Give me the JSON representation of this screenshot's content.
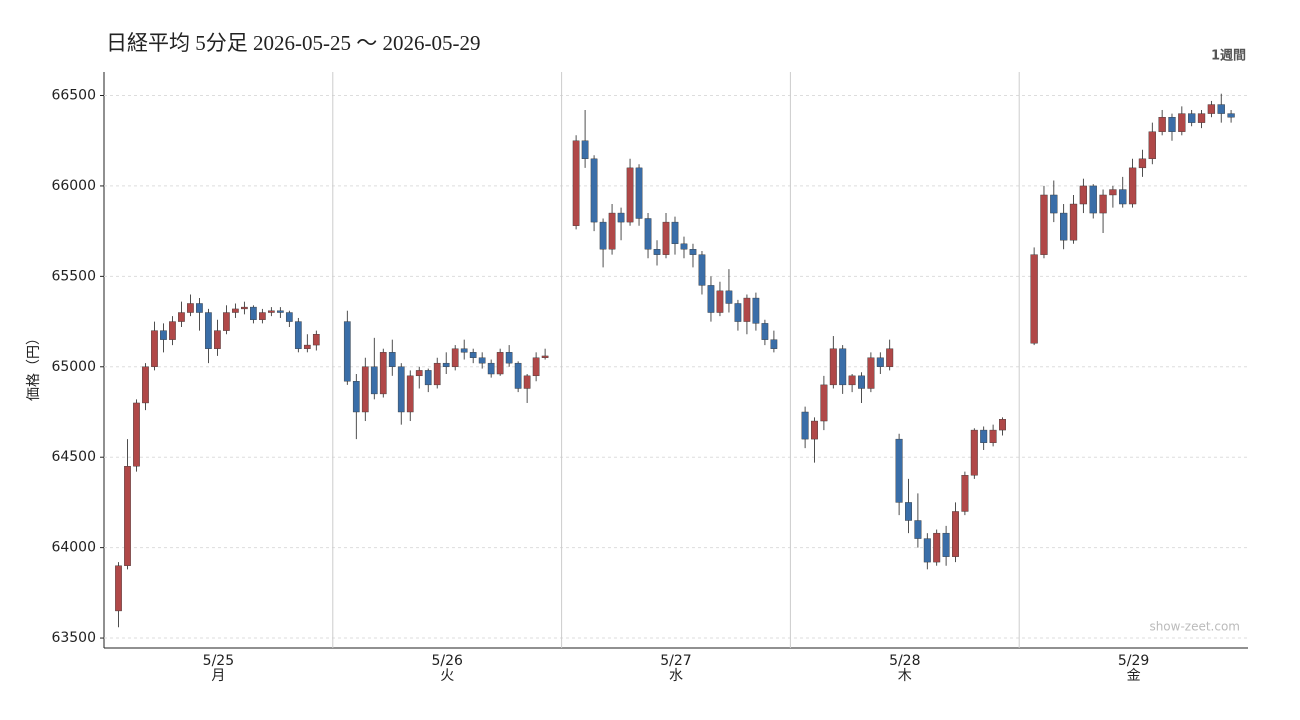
{
  "chart_data": {
    "type": "candlestick",
    "title": "日経平均 5分足  2026-05-25 〜 2026-05-29",
    "period": "1週間",
    "y_label": "価格（円）",
    "watermark": "show-zeet.com",
    "up_color": "#b04848",
    "down_color": "#3a6ea8",
    "ylim": [
      63445,
      66630
    ],
    "yticks": [
      63500,
      64000,
      64500,
      65000,
      65500,
      66000,
      66500
    ],
    "grid": true,
    "days": [
      {
        "date": "5/25",
        "weekday": "月",
        "candles": [
          [
            63650,
            63920,
            63560,
            63900
          ],
          [
            63900,
            64600,
            63880,
            64450
          ],
          [
            64450,
            64820,
            64420,
            64800
          ],
          [
            64800,
            65020,
            64760,
            65000
          ],
          [
            65000,
            65250,
            64980,
            65200
          ],
          [
            65200,
            65240,
            65080,
            65150
          ],
          [
            65150,
            65280,
            65120,
            65250
          ],
          [
            65250,
            65360,
            65220,
            65300
          ],
          [
            65300,
            65400,
            65280,
            65350
          ],
          [
            65350,
            65380,
            65200,
            65300
          ],
          [
            65300,
            65320,
            65020,
            65100
          ],
          [
            65100,
            65260,
            65060,
            65200
          ],
          [
            65200,
            65340,
            65180,
            65300
          ],
          [
            65300,
            65350,
            65270,
            65320
          ],
          [
            65320,
            65360,
            65290,
            65330
          ],
          [
            65330,
            65340,
            65240,
            65260
          ],
          [
            65260,
            65320,
            65240,
            65300
          ],
          [
            65300,
            65330,
            65280,
            65310
          ],
          [
            65310,
            65330,
            65270,
            65300
          ],
          [
            65300,
            65310,
            65220,
            65250
          ],
          [
            65250,
            65270,
            65080,
            65100
          ],
          [
            65100,
            65180,
            65080,
            65120
          ],
          [
            65120,
            65200,
            65090,
            65180
          ]
        ]
      },
      {
        "date": "5/26",
        "weekday": "火",
        "candles": [
          [
            65250,
            65310,
            64900,
            64920
          ],
          [
            64920,
            64960,
            64600,
            64750
          ],
          [
            64750,
            65050,
            64700,
            65000
          ],
          [
            65000,
            65160,
            64820,
            64850
          ],
          [
            64850,
            65100,
            64830,
            65080
          ],
          [
            65080,
            65150,
            64950,
            65000
          ],
          [
            65000,
            65020,
            64680,
            64750
          ],
          [
            64750,
            64980,
            64700,
            64950
          ],
          [
            64950,
            65000,
            64880,
            64980
          ],
          [
            64980,
            64990,
            64860,
            64900
          ],
          [
            64900,
            65050,
            64880,
            65020
          ],
          [
            65020,
            65080,
            64960,
            65000
          ],
          [
            65000,
            65120,
            64980,
            65100
          ],
          [
            65100,
            65150,
            65040,
            65080
          ],
          [
            65080,
            65100,
            65020,
            65050
          ],
          [
            65050,
            65080,
            64990,
            65020
          ],
          [
            65020,
            65040,
            64940,
            64960
          ],
          [
            64960,
            65100,
            64950,
            65080
          ],
          [
            65080,
            65120,
            65000,
            65020
          ],
          [
            65020,
            65030,
            64860,
            64880
          ],
          [
            64880,
            64960,
            64800,
            64950
          ],
          [
            64950,
            65080,
            64920,
            65050
          ],
          [
            65050,
            65100,
            65040,
            65060
          ]
        ]
      },
      {
        "date": "5/27",
        "weekday": "水",
        "candles": [
          [
            65780,
            66280,
            65760,
            66250
          ],
          [
            66250,
            66420,
            66100,
            66150
          ],
          [
            66150,
            66170,
            65750,
            65800
          ],
          [
            65800,
            65820,
            65550,
            65650
          ],
          [
            65650,
            65900,
            65620,
            65850
          ],
          [
            65850,
            65880,
            65700,
            65800
          ],
          [
            65800,
            66150,
            65780,
            66100
          ],
          [
            66100,
            66120,
            65780,
            65820
          ],
          [
            65820,
            65850,
            65600,
            65650
          ],
          [
            65650,
            65700,
            65560,
            65620
          ],
          [
            65620,
            65850,
            65600,
            65800
          ],
          [
            65800,
            65830,
            65620,
            65680
          ],
          [
            65680,
            65720,
            65600,
            65650
          ],
          [
            65650,
            65680,
            65550,
            65620
          ],
          [
            65620,
            65640,
            65400,
            65450
          ],
          [
            65450,
            65500,
            65250,
            65300
          ],
          [
            65300,
            65470,
            65280,
            65420
          ],
          [
            65420,
            65540,
            65300,
            65350
          ],
          [
            65350,
            65370,
            65200,
            65250
          ],
          [
            65250,
            65400,
            65180,
            65380
          ],
          [
            65380,
            65410,
            65200,
            65240
          ],
          [
            65240,
            65260,
            65120,
            65150
          ],
          [
            65150,
            65200,
            65080,
            65100
          ]
        ]
      },
      {
        "date": "5/28",
        "weekday": "木",
        "candles": [
          [
            64750,
            64780,
            64550,
            64600
          ],
          [
            64600,
            64720,
            64470,
            64700
          ],
          [
            64700,
            64950,
            64650,
            64900
          ],
          [
            64900,
            65170,
            64880,
            65100
          ],
          [
            65100,
            65120,
            64850,
            64900
          ],
          [
            64900,
            64960,
            64860,
            64950
          ],
          [
            64950,
            64970,
            64800,
            64880
          ],
          [
            64880,
            65080,
            64860,
            65050
          ],
          [
            65050,
            65080,
            64960,
            65000
          ],
          [
            65000,
            65150,
            64980,
            65100
          ],
          [
            64600,
            64630,
            64180,
            64250
          ],
          [
            64250,
            64380,
            64080,
            64150
          ],
          [
            64150,
            64300,
            64000,
            64050
          ],
          [
            64050,
            64080,
            63880,
            63920
          ],
          [
            63920,
            64100,
            63900,
            64080
          ],
          [
            64080,
            64120,
            63900,
            63950
          ],
          [
            63950,
            64250,
            63920,
            64200
          ],
          [
            64200,
            64420,
            64180,
            64400
          ],
          [
            64400,
            64660,
            64380,
            64650
          ],
          [
            64650,
            64670,
            64540,
            64580
          ],
          [
            64580,
            64680,
            64560,
            64650
          ],
          [
            64650,
            64720,
            64620,
            64710
          ]
        ]
      },
      {
        "date": "5/29",
        "weekday": "金",
        "candles": [
          [
            65130,
            65660,
            65120,
            65620
          ],
          [
            65620,
            66000,
            65600,
            65950
          ],
          [
            65950,
            66030,
            65800,
            65850
          ],
          [
            65850,
            65900,
            65650,
            65700
          ],
          [
            65700,
            65950,
            65680,
            65900
          ],
          [
            65900,
            66040,
            65850,
            66000
          ],
          [
            66000,
            66010,
            65820,
            65850
          ],
          [
            65850,
            65980,
            65740,
            65950
          ],
          [
            65950,
            66000,
            65880,
            65980
          ],
          [
            65980,
            66050,
            65880,
            65900
          ],
          [
            65900,
            66150,
            65880,
            66100
          ],
          [
            66100,
            66200,
            66050,
            66150
          ],
          [
            66150,
            66350,
            66120,
            66300
          ],
          [
            66300,
            66420,
            66280,
            66380
          ],
          [
            66380,
            66400,
            66250,
            66300
          ],
          [
            66300,
            66440,
            66280,
            66400
          ],
          [
            66400,
            66420,
            66330,
            66350
          ],
          [
            66350,
            66420,
            66320,
            66400
          ],
          [
            66400,
            66470,
            66380,
            66450
          ],
          [
            66450,
            66510,
            66350,
            66400
          ],
          [
            66400,
            66420,
            66350,
            66380
          ]
        ]
      }
    ]
  }
}
